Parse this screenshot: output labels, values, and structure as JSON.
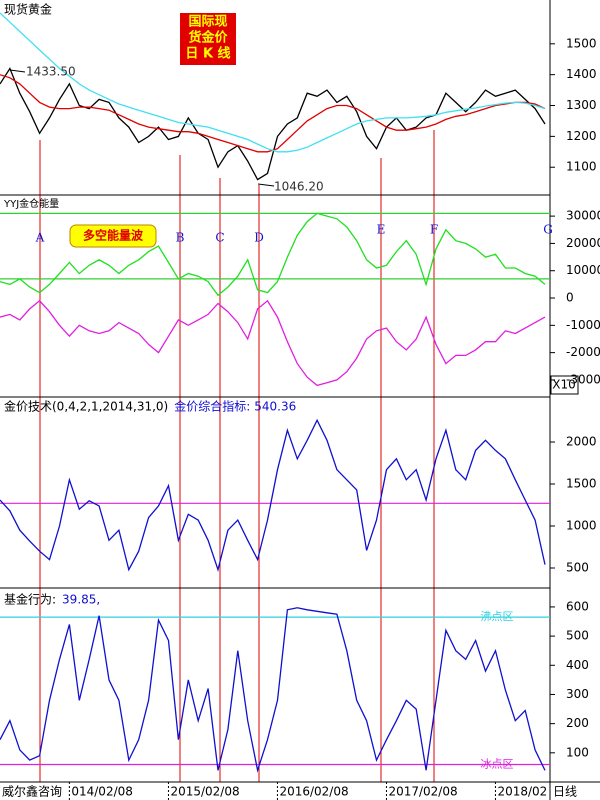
{
  "chart_data": [
    {
      "type": "line",
      "title": "现货黄金",
      "badge_lines": [
        "国际现",
        "货金价",
        "日 K 线"
      ],
      "annotations": [
        {
          "text": "1433.50"
        },
        {
          "text": "1046.20"
        }
      ],
      "ylim": [
        1010,
        1642
      ],
      "yticks": [
        1100,
        1200,
        1300,
        1400,
        1500
      ],
      "series": [
        {
          "color": "#000000",
          "values": [
            1370,
            1420,
            1340,
            1280,
            1210,
            1260,
            1320,
            1370,
            1300,
            1290,
            1320,
            1310,
            1260,
            1230,
            1180,
            1200,
            1230,
            1190,
            1200,
            1260,
            1210,
            1190,
            1100,
            1150,
            1170,
            1120,
            1060,
            1080,
            1200,
            1240,
            1260,
            1340,
            1330,
            1350,
            1310,
            1330,
            1280,
            1200,
            1160,
            1230,
            1260,
            1220,
            1230,
            1260,
            1270,
            1340,
            1310,
            1280,
            1310,
            1350,
            1330,
            1340,
            1350,
            1320,
            1290,
            1240
          ]
        },
        {
          "color": "#e00000",
          "values": [
            1400,
            1390,
            1370,
            1340,
            1310,
            1295,
            1290,
            1290,
            1295,
            1295,
            1290,
            1285,
            1270,
            1255,
            1240,
            1230,
            1225,
            1220,
            1215,
            1215,
            1210,
            1200,
            1190,
            1180,
            1170,
            1160,
            1150,
            1150,
            1160,
            1190,
            1220,
            1250,
            1270,
            1290,
            1300,
            1300,
            1290,
            1270,
            1250,
            1230,
            1220,
            1220,
            1225,
            1230,
            1240,
            1255,
            1265,
            1270,
            1280,
            1290,
            1300,
            1305,
            1310,
            1310,
            1305,
            1290
          ]
        },
        {
          "color": "#40e0f0",
          "values": [
            1600,
            1570,
            1540,
            1510,
            1480,
            1450,
            1420,
            1395,
            1370,
            1350,
            1335,
            1320,
            1305,
            1295,
            1285,
            1275,
            1265,
            1255,
            1245,
            1240,
            1235,
            1230,
            1220,
            1210,
            1200,
            1190,
            1175,
            1160,
            1150,
            1150,
            1155,
            1165,
            1180,
            1195,
            1210,
            1225,
            1240,
            1250,
            1255,
            1260,
            1260,
            1260,
            1262,
            1265,
            1270,
            1278,
            1283,
            1288,
            1292,
            1298,
            1303,
            1308,
            1310,
            1308,
            1300,
            1290
          ]
        }
      ]
    },
    {
      "type": "line",
      "title": "YYJ金仓能量",
      "badge": "多空能量波",
      "unit_label": "X10",
      "event_labels": [
        "A",
        "B",
        "C",
        "D",
        "E",
        "F",
        "G"
      ],
      "ylim": [
        -36250,
        37000
      ],
      "yticks": [
        30000,
        20000,
        10000,
        0,
        -10000,
        -20000,
        -30000
      ],
      "hlines": [
        {
          "value": 31000,
          "color": "#30d030"
        },
        {
          "value": 7000,
          "color": "#30d030"
        }
      ],
      "series": [
        {
          "color": "#20e020",
          "values": [
            6000,
            5000,
            7000,
            4000,
            2000,
            5000,
            9000,
            13000,
            9000,
            12000,
            14000,
            12000,
            9000,
            12000,
            14000,
            17000,
            19000,
            13000,
            7000,
            9000,
            8000,
            6000,
            1000,
            4000,
            8000,
            14000,
            3000,
            2000,
            6000,
            15000,
            23000,
            28000,
            31000,
            30000,
            29000,
            26000,
            21000,
            14000,
            11000,
            12000,
            17000,
            21000,
            16000,
            5000,
            18000,
            25000,
            21000,
            20000,
            18000,
            15000,
            16000,
            11000,
            11000,
            9000,
            8000,
            5000
          ]
        },
        {
          "color": "#e020e0",
          "values": [
            -7000,
            -6000,
            -8000,
            -4000,
            -1000,
            -5000,
            -10000,
            -14000,
            -10000,
            -12000,
            -13000,
            -12000,
            -9000,
            -11000,
            -13000,
            -17000,
            -20000,
            -14000,
            -8000,
            -10000,
            -8000,
            -6000,
            -2000,
            -5000,
            -9000,
            -15000,
            -4000,
            -1000,
            -7000,
            -16000,
            -24000,
            -29000,
            -32000,
            -31000,
            -30000,
            -27000,
            -22000,
            -15000,
            -12000,
            -11000,
            -16000,
            -19000,
            -15000,
            -7000,
            -17000,
            -24000,
            -21000,
            -21000,
            -19000,
            -16000,
            -16000,
            -12000,
            -13000,
            -11000,
            -9000,
            -7000
          ]
        }
      ]
    },
    {
      "type": "line",
      "title": "金价技术(0,4,2,1,2014,31,0)",
      "value_label": "金价综合指标:",
      "ylim": [
        262,
        2536
      ],
      "yticks": [
        500,
        1000,
        1500,
        2000
      ],
      "hlines": [
        {
          "value": 1270,
          "color": "#e020e0"
        }
      ],
      "series": [
        {
          "color": "#1010d0",
          "values": [
            1310,
            1180,
            950,
            820,
            700,
            600,
            1000,
            1550,
            1200,
            1300,
            1240,
            830,
            950,
            480,
            700,
            1100,
            1240,
            1480,
            830,
            1140,
            1070,
            830,
            480,
            950,
            1070,
            830,
            600,
            1070,
            1670,
            2140,
            1800,
            2020,
            2260,
            2020,
            1670,
            1550,
            1430,
            710,
            1070,
            1670,
            1800,
            1550,
            1670,
            1310,
            1800,
            2140,
            1670,
            1550,
            1900,
            2020,
            1900,
            1800,
            1550,
            1310,
            1070,
            540.36
          ]
        }
      ]
    },
    {
      "type": "line",
      "title": "基金行为:",
      "value_suffix": ",",
      "ylim": [
        0,
        658
      ],
      "yticks": [
        100,
        200,
        300,
        400,
        500,
        600
      ],
      "hlines": [
        {
          "value": 565,
          "color": "#30d0e0",
          "label": "沸点区"
        },
        {
          "value": 60,
          "color": "#e020e0",
          "label": "冰点区"
        }
      ],
      "categories": [
        null,
        null,
        null,
        null,
        null,
        null,
        null,
        "014/02/08",
        null,
        null,
        null,
        null,
        null,
        null,
        null,
        null,
        null,
        "2015/02/08",
        null,
        null,
        null,
        null,
        null,
        null,
        null,
        null,
        null,
        null,
        "2016/02/08",
        null,
        null,
        null,
        null,
        null,
        null,
        null,
        null,
        null,
        null,
        "2017/02/08",
        null,
        null,
        null,
        null,
        null,
        null,
        null,
        null,
        null,
        null,
        "2018/02",
        null,
        null,
        null,
        null,
        null
      ],
      "x_suffix": "日线",
      "source": "威尔鑫咨询",
      "series": [
        {
          "color": "#1010d0",
          "values": [
            145,
            210,
            110,
            75,
            90,
            280,
            420,
            540,
            280,
            420,
            570,
            350,
            280,
            75,
            145,
            280,
            555,
            485,
            145,
            350,
            210,
            320,
            40,
            180,
            450,
            210,
            40,
            145,
            280,
            590,
            597,
            590,
            585,
            580,
            575,
            450,
            280,
            210,
            75,
            145,
            210,
            280,
            250,
            40,
            280,
            520,
            450,
            420,
            485,
            380,
            450,
            315,
            210,
            245,
            110,
            39.85
          ]
        }
      ]
    }
  ]
}
